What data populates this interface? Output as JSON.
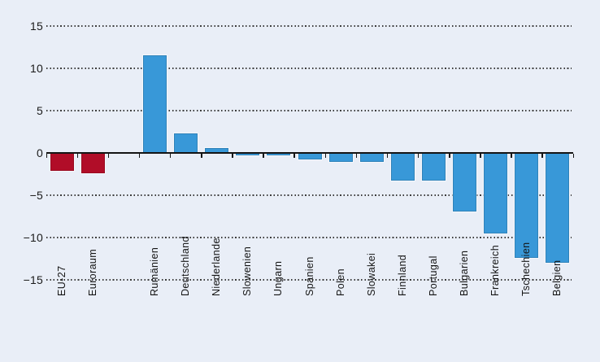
{
  "chart_data": {
    "type": "bar",
    "categories": [
      "EU-27",
      "Euroraum",
      "Rumänien",
      "Deutschland",
      "Niederlande",
      "Slowenien",
      "Ungarn",
      "Spanien",
      "Polen",
      "Slowakei",
      "Finnland",
      "Portugal",
      "Bulgarien",
      "Frankreich",
      "Tschechien",
      "Belgien"
    ],
    "values": [
      -2.1,
      -2.4,
      11.5,
      2.3,
      0.6,
      -0.3,
      -0.3,
      -0.8,
      -1.1,
      -1.1,
      -3.3,
      -3.3,
      -6.9,
      -9.5,
      -12.4,
      -13.0
    ],
    "bar_color_keys": [
      "red",
      "red",
      "blue",
      "blue",
      "blue",
      "blue",
      "blue",
      "blue",
      "blue",
      "blue",
      "blue",
      "blue",
      "blue",
      "blue",
      "blue",
      "blue"
    ],
    "palette": {
      "red": "#b10d28",
      "blue": "#3898d8",
      "background": "#e9eef7",
      "axis": "#141414"
    },
    "ylim": [
      -15,
      15
    ],
    "yticks": [
      15,
      10,
      5,
      0,
      -5,
      -10,
      -15
    ],
    "grid": "horizontal-dotted-every-5-except-zero",
    "legend": "none",
    "group_gap_after_index": 1,
    "x_tick_marks": "at-every-slot-boundary-below-axis",
    "xlabel_rotation_deg": 90
  }
}
